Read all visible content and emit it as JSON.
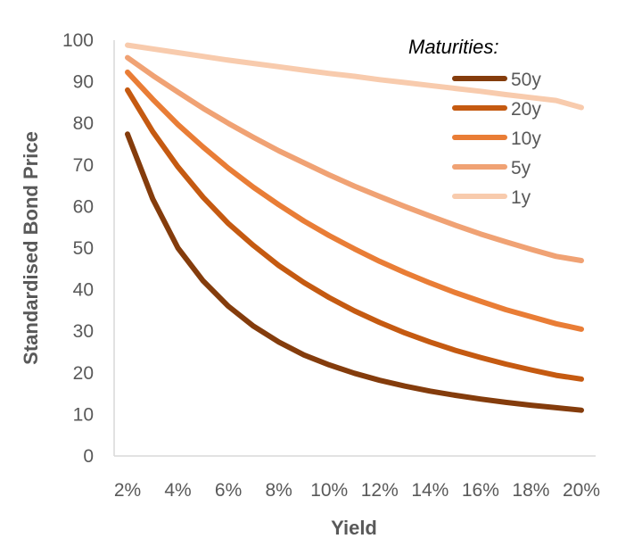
{
  "chart_data": {
    "type": "line",
    "title": "",
    "xlabel": "Yield",
    "ylabel": "Standardised Bond Price",
    "xlim": [
      2,
      20
    ],
    "ylim": [
      0,
      100
    ],
    "x": [
      2,
      3,
      4,
      5,
      6,
      7,
      8,
      9,
      10,
      11,
      12,
      13,
      14,
      15,
      16,
      17,
      18,
      19,
      20
    ],
    "x_tick_labels": [
      "2%",
      "4%",
      "6%",
      "8%",
      "10%",
      "12%",
      "14%",
      "16%",
      "18%",
      "20%"
    ],
    "y_tick_labels": [
      "0",
      "10",
      "20",
      "30",
      "40",
      "50",
      "60",
      "70",
      "80",
      "90",
      "100"
    ],
    "grid": false,
    "legend": {
      "title": "Maturities:",
      "placement": "top-right"
    },
    "series": [
      {
        "name": "50y",
        "color": "#843c0c",
        "values": [
          77.4,
          61.8,
          50.0,
          42.1,
          36.0,
          31.2,
          27.4,
          24.3,
          21.9,
          19.9,
          18.2,
          16.8,
          15.6,
          14.6,
          13.7,
          12.9,
          12.2,
          11.6,
          11.0
        ]
      },
      {
        "name": "20y",
        "color": "#c55a11",
        "values": [
          88.0,
          78.0,
          69.5,
          62.2,
          55.9,
          50.6,
          45.8,
          41.7,
          38.1,
          34.9,
          32.1,
          29.6,
          27.4,
          25.4,
          23.7,
          22.1,
          20.7,
          19.4,
          18.5
        ]
      },
      {
        "name": "10y",
        "color": "#e97d36",
        "values": [
          92.3,
          85.8,
          79.7,
          74.3,
          69.2,
          64.6,
          60.4,
          56.5,
          53.0,
          49.8,
          46.8,
          44.1,
          41.6,
          39.3,
          37.2,
          35.2,
          33.5,
          31.8,
          30.5
        ]
      },
      {
        "name": "5y",
        "color": "#f0a274",
        "values": [
          95.8,
          91.5,
          87.5,
          83.6,
          80.0,
          76.6,
          73.4,
          70.5,
          67.6,
          64.9,
          62.4,
          60.0,
          57.7,
          55.5,
          53.4,
          51.5,
          49.7,
          48.0,
          47.0
        ]
      },
      {
        "name": "1y",
        "color": "#f8cbad",
        "values": [
          98.8,
          97.9,
          97.0,
          96.1,
          95.2,
          94.4,
          93.6,
          92.8,
          92.0,
          91.3,
          90.5,
          89.8,
          89.1,
          88.4,
          87.7,
          86.9,
          86.2,
          85.5,
          83.8
        ]
      }
    ]
  }
}
